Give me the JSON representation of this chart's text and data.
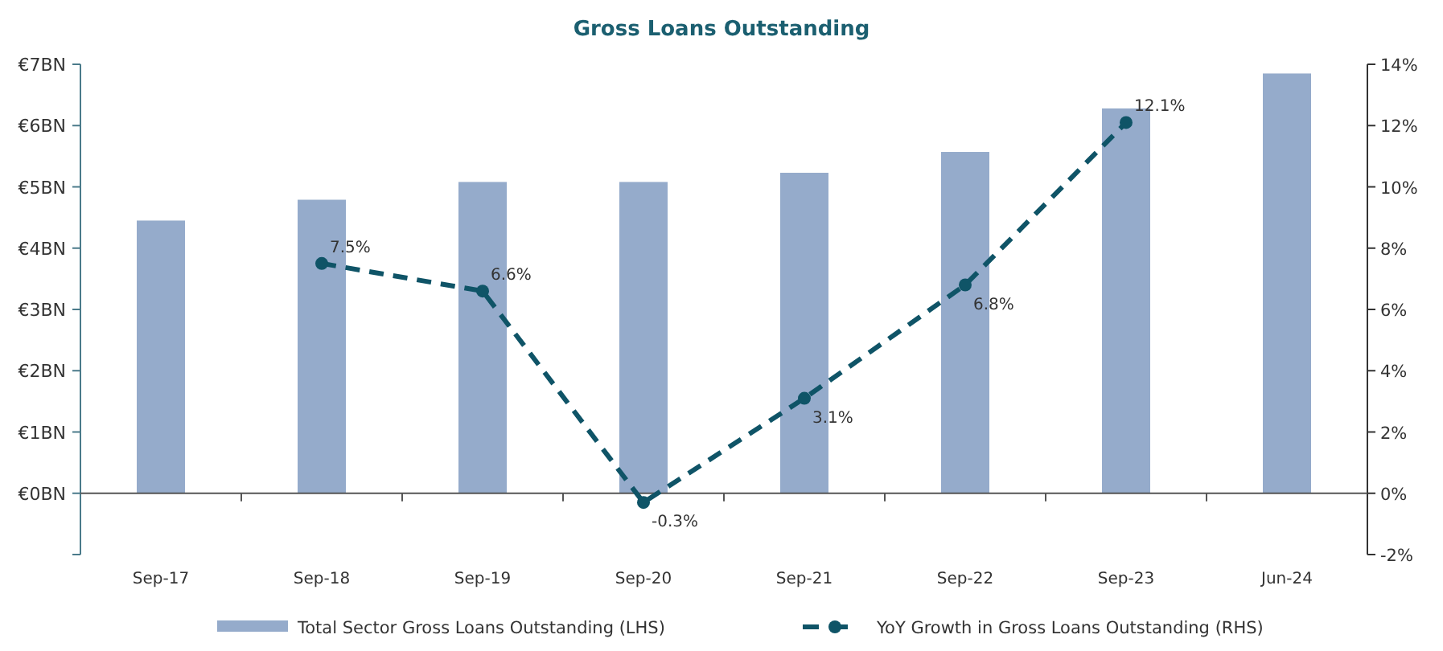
{
  "chart_data": {
    "type": "bar",
    "title": "Gross Loans Outstanding",
    "categories": [
      "Sep-17",
      "Sep-18",
      "Sep-19",
      "Sep-20",
      "Sep-21",
      "Sep-22",
      "Sep-23",
      "Jun-24"
    ],
    "series": [
      {
        "name": "Total Sector Gross Loans Outstanding (LHS)",
        "color": "#95abcb",
        "values": [
          4.45,
          4.79,
          5.08,
          5.08,
          5.23,
          5.57,
          6.28,
          6.85
        ]
      },
      {
        "name": "YoY Growth in Gross Loans Outstanding (RHS)",
        "type": "line",
        "axis": "y2",
        "color": "#0f5467",
        "values": [
          null,
          7.5,
          6.6,
          -0.3,
          3.1,
          6.8,
          12.1,
          null
        ],
        "value_labels": [
          null,
          "7.5%",
          "6.6%",
          "-0.3%",
          "3.1%",
          "6.8%",
          "12.1%",
          null
        ],
        "marker": "circle",
        "line_style": "dashed"
      }
    ],
    "ylim": [
      -1,
      7
    ],
    "yticks": [
      {
        "value": -1,
        "label": null
      },
      {
        "value": 0,
        "label": "€0BN"
      },
      {
        "value": 1,
        "label": "€1BN"
      },
      {
        "value": 2,
        "label": "€2BN"
      },
      {
        "value": 3,
        "label": "€3BN"
      },
      {
        "value": 4,
        "label": "€4BN"
      },
      {
        "value": 5,
        "label": "€5BN"
      },
      {
        "value": 6,
        "label": "€6BN"
      },
      {
        "value": 7,
        "label": "€7BN"
      }
    ],
    "y2lim": [
      -2,
      14
    ],
    "y2ticks": [
      {
        "value": -2,
        "label": "-2%"
      },
      {
        "value": 0,
        "label": "0%"
      },
      {
        "value": 2,
        "label": "2%"
      },
      {
        "value": 4,
        "label": "4%"
      },
      {
        "value": 6,
        "label": "6%"
      },
      {
        "value": 8,
        "label": "8%"
      },
      {
        "value": 10,
        "label": "10%"
      },
      {
        "value": 12,
        "label": "12%"
      },
      {
        "value": 14,
        "label": "14%"
      }
    ],
    "legend": "bottom"
  }
}
